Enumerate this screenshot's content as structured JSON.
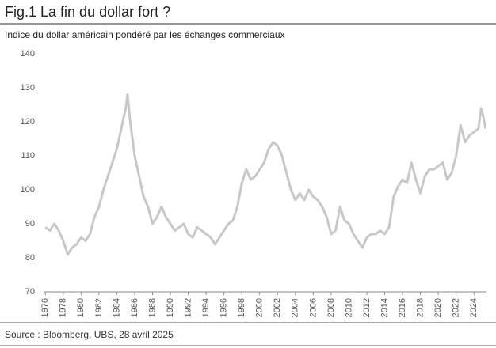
{
  "chart_data": {
    "type": "line",
    "title": "Fig.1 La fin du dollar fort ?",
    "subtitle": "Indice du dollar américain pondéré par les échanges commerciaux",
    "source": "Source : Bloomberg, UBS, 28 avril 2025",
    "color": "#c8c8c8",
    "x": [
      1976,
      1976.5,
      1977,
      1977.5,
      1978,
      1978.5,
      1979,
      1979.5,
      1980,
      1980.5,
      1981,
      1981.5,
      1982,
      1982.5,
      1983,
      1983.5,
      1984,
      1984.5,
      1985,
      1985.2,
      1985.5,
      1986,
      1986.5,
      1987,
      1987.5,
      1988,
      1988.5,
      1989,
      1989.5,
      1990,
      1990.5,
      1991,
      1991.5,
      1992,
      1992.5,
      1993,
      1993.5,
      1994,
      1994.5,
      1995,
      1995.5,
      1996,
      1996.5,
      1997,
      1997.5,
      1998,
      1998.5,
      1999,
      1999.5,
      2000,
      2000.5,
      2001,
      2001.5,
      2002,
      2002.5,
      2003,
      2003.5,
      2004,
      2004.5,
      2005,
      2005.5,
      2006,
      2006.5,
      2007,
      2007.5,
      2008,
      2008.5,
      2009,
      2009.5,
      2010,
      2010.5,
      2011,
      2011.5,
      2012,
      2012.5,
      2013,
      2013.5,
      2014,
      2014.5,
      2015,
      2015.5,
      2016,
      2016.5,
      2017,
      2017.5,
      2018,
      2018.5,
      2019,
      2019.5,
      2020,
      2020.5,
      2021,
      2021.5,
      2022,
      2022.5,
      2023,
      2023.5,
      2024,
      2024.5,
      2024.8,
      2025,
      2025.3
    ],
    "values": [
      89,
      88,
      90,
      88,
      85,
      81,
      83,
      84,
      86,
      85,
      87,
      92,
      95,
      100,
      104,
      108,
      112,
      118,
      124,
      128,
      120,
      110,
      104,
      98,
      95,
      90,
      92,
      95,
      92,
      90,
      88,
      89,
      90,
      87,
      86,
      89,
      88,
      87,
      86,
      84,
      86,
      88,
      90,
      91,
      95,
      102,
      106,
      103,
      104,
      106,
      108,
      112,
      114,
      113,
      110,
      105,
      100,
      97,
      99,
      97,
      100,
      98,
      97,
      95,
      92,
      87,
      88,
      95,
      91,
      90,
      87,
      85,
      83,
      86,
      87,
      87,
      88,
      87,
      89,
      98,
      101,
      103,
      102,
      108,
      103,
      99,
      104,
      106,
      106,
      107,
      108,
      103,
      105,
      110,
      119,
      114,
      116,
      117,
      118,
      124,
      122,
      118
    ],
    "xlim": [
      1975.8,
      2025.4
    ],
    "xticks": [
      1976,
      1978,
      1980,
      1982,
      1984,
      1986,
      1988,
      1990,
      1992,
      1994,
      1996,
      1998,
      2000,
      2002,
      2004,
      2006,
      2008,
      2010,
      2012,
      2014,
      2016,
      2018,
      2020,
      2022,
      2024
    ],
    "ylim": [
      70,
      140
    ],
    "yticks": [
      70,
      80,
      90,
      100,
      110,
      120,
      130,
      140
    ],
    "grid": false
  }
}
